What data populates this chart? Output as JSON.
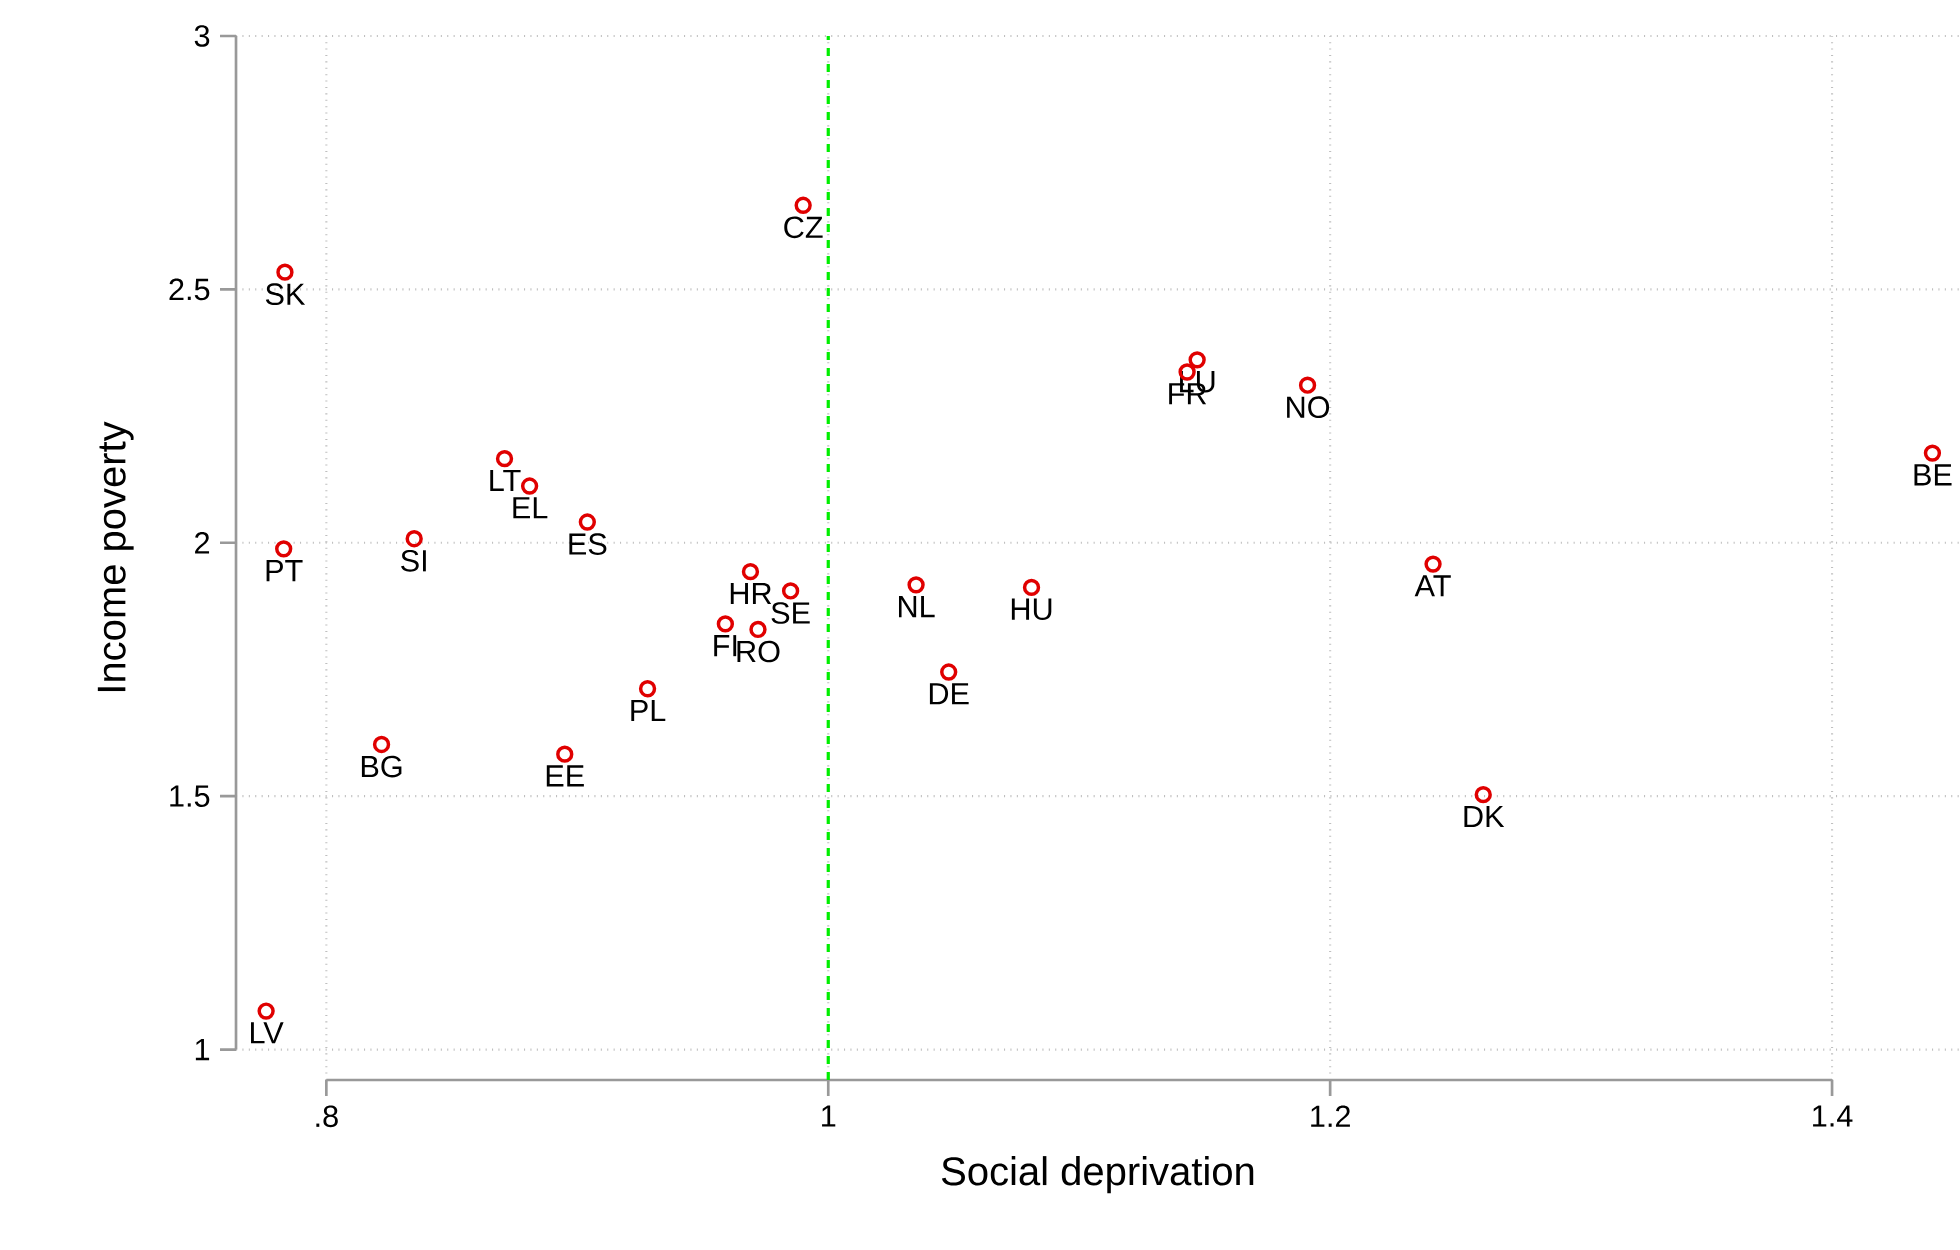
{
  "chart_data": {
    "type": "scatter",
    "xlabel": "Social deprivation",
    "ylabel": "Income poverty",
    "series": [
      {
        "color": "#e00000",
        "marker": "circle",
        "x": [
          0.7835,
          0.99,
          0.871,
          0.881,
          0.904,
          0.835,
          0.783,
          0.969,
          0.985,
          0.959,
          0.972,
          0.928,
          0.822,
          0.895,
          0.776,
          1.147,
          1.143,
          1.191,
          1.035,
          1.081,
          1.048,
          1.241,
          1.261,
          1.44
        ],
        "values": [
          2.534,
          2.666,
          2.166,
          2.112,
          2.041,
          2.008,
          1.988,
          1.943,
          1.905,
          1.84,
          1.829,
          1.712,
          1.602,
          1.583,
          1.076,
          2.361,
          2.337,
          2.311,
          1.917,
          1.912,
          1.745,
          1.958,
          1.503,
          2.177
        ],
        "value_labels": [
          "SK",
          "CZ",
          "LT",
          "EL",
          "ES",
          "SI",
          "PT",
          "HR",
          "SE",
          "FI",
          "RO",
          "PL",
          "BG",
          "EE",
          "LV",
          "LU",
          "FR",
          "NO",
          "NL",
          "HU",
          "DE",
          "AT",
          "DK",
          "BE"
        ]
      }
    ],
    "xlim": [
      0.764,
      1.451
    ],
    "ylim": [
      0.94,
      3.0
    ],
    "xticks": [
      {
        "value": 0.8,
        "label": ".8"
      },
      1,
      1.2,
      1.4
    ],
    "yticks": [
      1,
      1.5,
      2,
      2.5,
      3
    ],
    "ref_lines": [
      {
        "axis": "x",
        "value": 1,
        "color": "#00ee00",
        "line_style": "dashed"
      }
    ],
    "grid": true
  }
}
